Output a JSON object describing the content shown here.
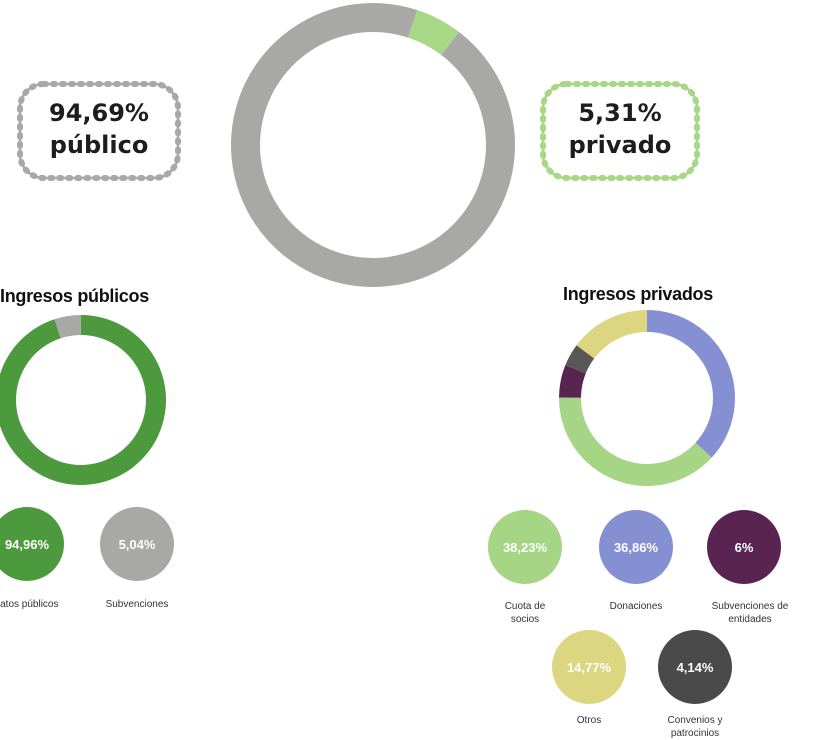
{
  "overall": {
    "publico": {
      "pct_label": "94,69%",
      "word": "público",
      "color": "#a8a8a6"
    },
    "privado": {
      "pct_label": "5,31%",
      "word": "privado",
      "color": "#a8d785"
    }
  },
  "publicos": {
    "title": "Ingresos públicos",
    "items": [
      {
        "label": "94,96%",
        "caption": "tratos públicos",
        "color": "#4c9a3d"
      },
      {
        "label": "5,04%",
        "caption": "Subvenciones",
        "color": "#a8a8a6"
      }
    ]
  },
  "privados": {
    "title": "Ingresos privados",
    "items": [
      {
        "label": "38,23%",
        "caption": "Cuota de socios",
        "color": "#a5d585"
      },
      {
        "label": "36,86%",
        "caption": "Donaciones",
        "color": "#8590d2"
      },
      {
        "label": "6%",
        "caption": "Subvenciones de entidades",
        "color": "#5a2452"
      },
      {
        "label": "14,77%",
        "caption": "Otros",
        "color": "#dbd67f"
      },
      {
        "label": "4,14%",
        "caption": "Convenios y patrocinios",
        "color": "#585858"
      }
    ]
  },
  "chart_data": [
    {
      "type": "pie",
      "categories": [
        "público",
        "privado"
      ],
      "values": [
        94.69,
        5.31
      ],
      "colors": [
        "#a8a8a6",
        "#a8d785"
      ]
    },
    {
      "type": "pie",
      "title": "Ingresos públicos",
      "categories": [
        "tratos públicos",
        "Subvenciones"
      ],
      "values": [
        94.96,
        5.04
      ],
      "colors": [
        "#4c9a3d",
        "#a8a8a6"
      ]
    },
    {
      "type": "pie",
      "title": "Ingresos privados",
      "categories": [
        "Donaciones",
        "Cuota de socios",
        "Subvenciones de entidades",
        "Convenios y patrocinios",
        "Otros"
      ],
      "values": [
        36.86,
        38.23,
        6,
        4.14,
        14.77
      ],
      "colors": [
        "#8590d2",
        "#a5d585",
        "#5a2452",
        "#585858",
        "#dbd67f"
      ]
    }
  ]
}
